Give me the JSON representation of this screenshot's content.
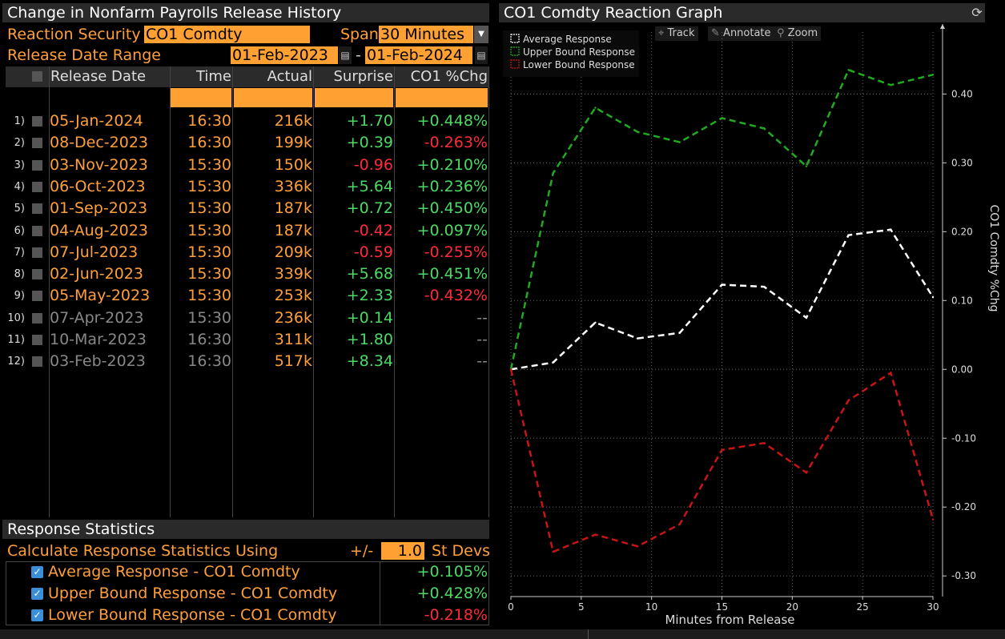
{
  "left_panel": {
    "title": "Change in Nonfarm Payrolls Release History",
    "reaction_security_label": "Reaction Security",
    "reaction_security_value": "CO1 Comdty",
    "span_label": "Span",
    "span_value": "30 Minutes",
    "release_date_range_label": "Release Date Range",
    "date_from": "01-Feb-2023",
    "date_separator": "-",
    "date_to": "01-Feb-2024"
  },
  "table": {
    "headers": [
      "Release Date",
      "Time",
      "Actual",
      "Surprise",
      "CO1 %Chg"
    ],
    "rows": [
      {
        "n": "1)",
        "date": "05-Jan-2024",
        "time": "16:30",
        "actual": "216k",
        "surprise": "+1.70",
        "chg": "+0.448%",
        "active": true
      },
      {
        "n": "2)",
        "date": "08-Dec-2023",
        "time": "16:30",
        "actual": "199k",
        "surprise": "+0.39",
        "chg": "-0.263%",
        "active": true
      },
      {
        "n": "3)",
        "date": "03-Nov-2023",
        "time": "15:30",
        "actual": "150k",
        "surprise": "-0.96",
        "chg": "+0.210%",
        "active": true
      },
      {
        "n": "4)",
        "date": "06-Oct-2023",
        "time": "15:30",
        "actual": "336k",
        "surprise": "+5.64",
        "chg": "+0.236%",
        "active": true
      },
      {
        "n": "5)",
        "date": "01-Sep-2023",
        "time": "15:30",
        "actual": "187k",
        "surprise": "+0.72",
        "chg": "+0.450%",
        "active": true
      },
      {
        "n": "6)",
        "date": "04-Aug-2023",
        "time": "15:30",
        "actual": "187k",
        "surprise": "-0.42",
        "chg": "+0.097%",
        "active": true
      },
      {
        "n": "7)",
        "date": "07-Jul-2023",
        "time": "15:30",
        "actual": "209k",
        "surprise": "-0.59",
        "chg": "-0.255%",
        "active": true
      },
      {
        "n": "8)",
        "date": "02-Jun-2023",
        "time": "15:30",
        "actual": "339k",
        "surprise": "+5.68",
        "chg": "+0.451%",
        "active": true
      },
      {
        "n": "9)",
        "date": "05-May-2023",
        "time": "15:30",
        "actual": "253k",
        "surprise": "+2.33",
        "chg": "-0.432%",
        "active": true
      },
      {
        "n": "10)",
        "date": "07-Apr-2023",
        "time": "15:30",
        "actual": "236k",
        "surprise": "+0.14",
        "chg": "--",
        "active": false
      },
      {
        "n": "11)",
        "date": "10-Mar-2023",
        "time": "16:30",
        "actual": "311k",
        "surprise": "+1.80",
        "chg": "--",
        "active": false
      },
      {
        "n": "12)",
        "date": "03-Feb-2023",
        "time": "16:30",
        "actual": "517k",
        "surprise": "+8.34",
        "chg": "--",
        "active": false
      }
    ]
  },
  "stats": {
    "title": "Response Statistics",
    "calc_label": "Calculate Response Statistics Using",
    "plusminus": "+/-",
    "stdev_value": "1.0",
    "stdev_unit": "St Devs",
    "items": [
      {
        "label": "Average Response - CO1 Comdty",
        "value": "+0.105%"
      },
      {
        "label": "Upper Bound Response - CO1 Comdty",
        "value": "+0.428%"
      },
      {
        "label": "Lower Bound Response - CO1 Comdty",
        "value": "-0.218%"
      }
    ]
  },
  "chart_panel": {
    "title": "CO1 Comdty Reaction Graph",
    "refresh_icon": "refresh-icon",
    "tools": [
      "Track",
      "Annotate",
      "Zoom"
    ]
  },
  "colors": {
    "orange": "#ffa033",
    "green": "#4cd964",
    "red": "#ff2a3a",
    "avg": "#ffffff",
    "upper": "#1faa1f",
    "lower": "#c81414"
  },
  "chart_data": {
    "type": "line",
    "xlabel": "Minutes from Release",
    "ylabel": "CO1 Comdty %Chg",
    "xlim": [
      0,
      30
    ],
    "ylim": [
      -0.33,
      0.49
    ],
    "xticks": [
      0,
      5,
      10,
      15,
      20,
      25,
      30
    ],
    "yticks": [
      -0.3,
      -0.2,
      -0.1,
      0.0,
      0.1,
      0.2,
      0.3,
      0.4
    ],
    "ytick_labels": [
      "-0.30",
      "-0.20",
      "-0.10",
      "0.00",
      "0.10",
      "0.20",
      "0.30",
      "0.40"
    ],
    "grid": true,
    "legend_position": "top-left",
    "x": [
      0,
      3,
      6,
      9,
      12,
      15,
      18,
      21,
      24,
      27,
      30
    ],
    "series": [
      {
        "name": "Average Response",
        "color": "#ffffff",
        "values": [
          0.0,
          0.01,
          0.068,
          0.045,
          0.053,
          0.123,
          0.12,
          0.075,
          0.195,
          0.203,
          0.105
        ]
      },
      {
        "name": "Upper Bound Response",
        "color": "#1faa1f",
        "values": [
          0.0,
          0.285,
          0.38,
          0.345,
          0.33,
          0.365,
          0.35,
          0.295,
          0.435,
          0.413,
          0.428
        ]
      },
      {
        "name": "Lower Bound Response",
        "color": "#c81414",
        "values": [
          0.0,
          -0.265,
          -0.24,
          -0.257,
          -0.225,
          -0.117,
          -0.107,
          -0.15,
          -0.045,
          -0.005,
          -0.218
        ]
      }
    ]
  }
}
